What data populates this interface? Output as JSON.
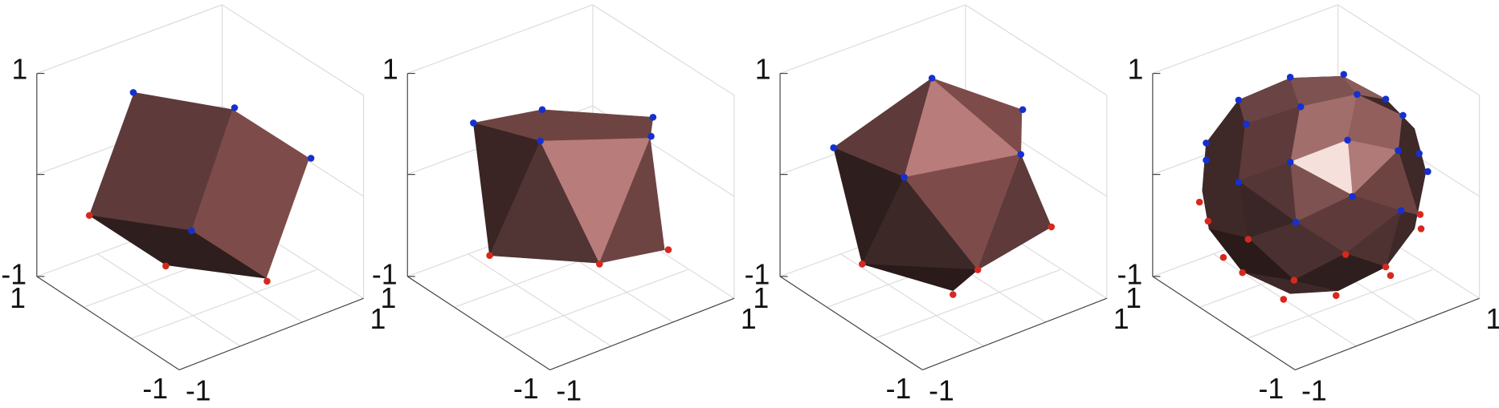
{
  "panels": [
    {
      "vertical_axis": [
        1,
        -1
      ],
      "left_axis": [
        1,
        -1
      ],
      "right_axis": [
        -1,
        1
      ]
    },
    {
      "vertical_axis": [
        1,
        -1
      ],
      "left_axis": [
        1,
        -1
      ],
      "right_axis": [
        -1,
        1
      ]
    },
    {
      "vertical_axis": [
        1,
        -1
      ],
      "left_axis": [
        1,
        -1
      ],
      "right_axis": [
        -1,
        1
      ]
    },
    {
      "vertical_axis": [
        1,
        -1
      ],
      "left_axis": [
        1,
        -1
      ],
      "right_axis": [
        -1,
        1
      ]
    }
  ]
}
